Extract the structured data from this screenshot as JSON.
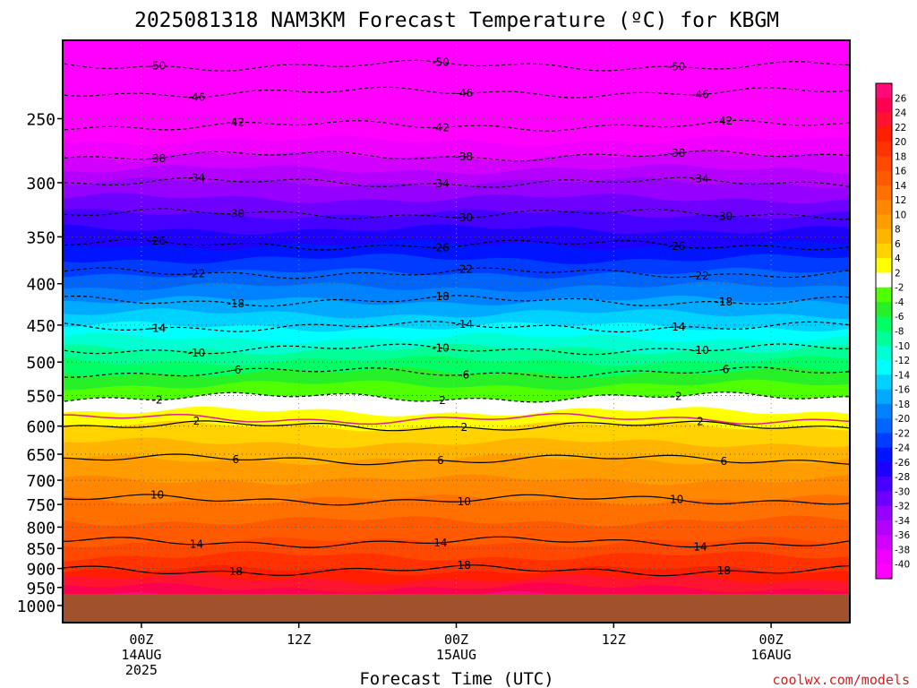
{
  "chart_data": {
    "type": "heatmap",
    "title": "2025081318 NAM3KM Forecast Temperature (ºC) for KBGM",
    "xlabel": "Forecast Time (UTC)",
    "ylabel": "",
    "credit": "coolwx.com/models",
    "y_axis": {
      "scale": "log",
      "inverted": true,
      "unit": "hPa",
      "range": [
        1050,
        200
      ],
      "ticks": [
        250,
        300,
        350,
        400,
        450,
        500,
        550,
        600,
        650,
        700,
        750,
        800,
        850,
        900,
        950,
        1000
      ]
    },
    "x_axis": {
      "range_hours": [
        -6,
        54
      ],
      "ticks": [
        {
          "hour": 0,
          "line1": "00Z",
          "line2": "14AUG",
          "line3": "2025"
        },
        {
          "hour": 12,
          "line1": "12Z",
          "line2": "",
          "line3": ""
        },
        {
          "hour": 24,
          "line1": "00Z",
          "line2": "15AUG",
          "line3": ""
        },
        {
          "hour": 36,
          "line1": "12Z",
          "line2": "",
          "line3": ""
        },
        {
          "hour": 48,
          "line1": "00Z",
          "line2": "16AUG",
          "line3": ""
        }
      ]
    },
    "grid": true,
    "colorbar": {
      "placement": "right",
      "labels": [
        "26",
        "24",
        "22",
        "20",
        "18",
        "16",
        "14",
        "12",
        "10",
        "8",
        "6",
        "4",
        "2",
        "-2",
        "-4",
        "-6",
        "-8",
        "-10",
        "-12",
        "-14",
        "-16",
        "-18",
        "-20",
        "-22",
        "-24",
        "-26",
        "-28",
        "-30",
        "-32",
        "-34",
        "-36",
        "-38",
        "-40"
      ],
      "colors": [
        "#ff0a78",
        "#ff0050",
        "#ff1430",
        "#ff1e00",
        "#ff3200",
        "#ff4800",
        "#ff5a00",
        "#ff7000",
        "#ff8800",
        "#ff9c00",
        "#ffb400",
        "#ffd200",
        "#ffff00",
        "#ffffff",
        "#50ff00",
        "#28f028",
        "#00ff64",
        "#00ff96",
        "#00ffd2",
        "#00ffff",
        "#00d2ff",
        "#00aaff",
        "#0082ff",
        "#0064ff",
        "#003cff",
        "#0014ff",
        "#1e00ff",
        "#4600ff",
        "#6e00ff",
        "#9600ff",
        "#b400ff",
        "#d200ff",
        "#f000ff",
        "#ff00ff"
      ]
    },
    "terrain_color": "#a0522d",
    "contours": [
      {
        "label": "-50",
        "pressure": 215
      },
      {
        "label": "-46",
        "pressure": 232
      },
      {
        "label": "-42",
        "pressure": 255
      },
      {
        "label": "-38",
        "pressure": 278
      },
      {
        "label": "-34",
        "pressure": 300
      },
      {
        "label": "-30",
        "pressure": 328
      },
      {
        "label": "-26",
        "pressure": 358
      },
      {
        "label": "-22",
        "pressure": 388
      },
      {
        "label": "-18",
        "pressure": 420
      },
      {
        "label": "-14",
        "pressure": 452
      },
      {
        "label": "-10",
        "pressure": 482
      },
      {
        "label": "-6",
        "pressure": 515
      },
      {
        "label": "-2",
        "pressure": 553
      },
      {
        "label": "2",
        "pressure": 600
      },
      {
        "label": "6",
        "pressure": 660
      },
      {
        "label": "10",
        "pressure": 740
      },
      {
        "label": "14",
        "pressure": 835
      },
      {
        "label": "18",
        "pressure": 905
      }
    ]
  }
}
